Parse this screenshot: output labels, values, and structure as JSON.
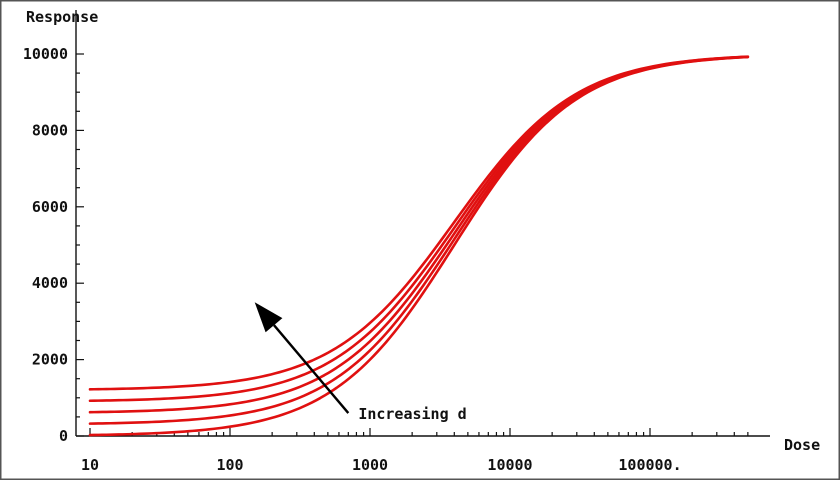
{
  "chart_data": {
    "type": "line",
    "title": "",
    "xlabel": "Dose",
    "ylabel": "Response",
    "x_scale": "log",
    "xlim": [
      10,
      500000
    ],
    "ylim": [
      0,
      10000
    ],
    "x_ticks": [
      {
        "value": 10,
        "label": "10"
      },
      {
        "value": 100,
        "label": "100"
      },
      {
        "value": 1000,
        "label": "1000"
      },
      {
        "value": 10000,
        "label": "10000"
      },
      {
        "value": 100000,
        "label": "100000."
      }
    ],
    "y_ticks": [
      {
        "value": 0,
        "label": "0"
      },
      {
        "value": 2000,
        "label": "2000"
      },
      {
        "value": 4000,
        "label": "4000"
      },
      {
        "value": 6000,
        "label": "6000"
      },
      {
        "value": 8000,
        "label": "8000"
      },
      {
        "value": 10000,
        "label": "10000"
      }
    ],
    "grid": false,
    "curve_color": "#e01010",
    "series": [
      {
        "baseline": 0
      },
      {
        "baseline": 300
      },
      {
        "baseline": 600
      },
      {
        "baseline": 900
      },
      {
        "baseline": 1200
      }
    ],
    "top": 10000,
    "ec50": 4000,
    "hill": 1,
    "x_range": [
      10,
      500000
    ],
    "annotation": {
      "text": "Increasing d",
      "arrow_from": {
        "x": 700,
        "y": 600
      },
      "arrow_to": {
        "x": 150,
        "y": 3500
      }
    }
  }
}
